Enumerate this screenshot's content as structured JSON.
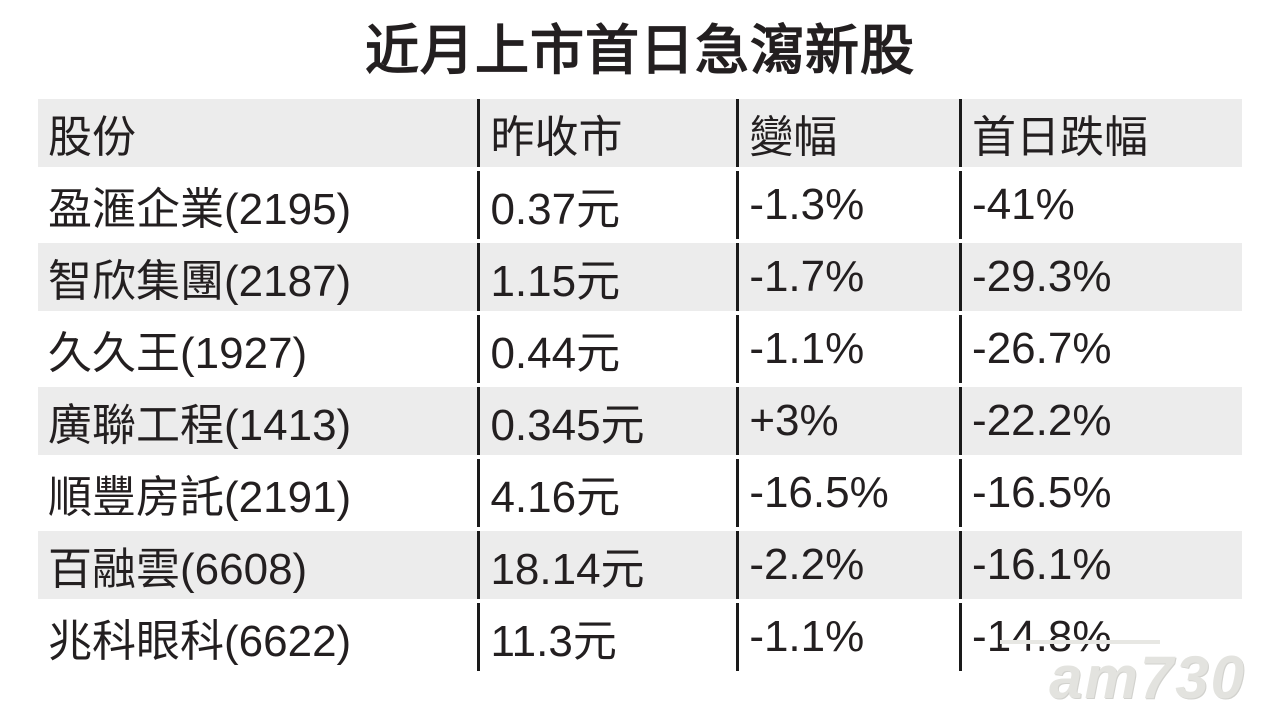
{
  "title": "近月上市首日急瀉新股",
  "watermark": "am730",
  "colors": {
    "text": "#231f20",
    "row_alt_background": "#ececec",
    "divider_line": "#1a1a1a",
    "watermark_gray": "#e3e3df"
  },
  "table": {
    "headers": [
      "股份",
      "昨收市",
      "變幅",
      "首日跌幅"
    ],
    "rows": [
      [
        "盈滙企業(2195)",
        "0.37元",
        "-1.3%",
        "-41%"
      ],
      [
        "智欣集團(2187)",
        "1.15元",
        "-1.7%",
        "-29.3%"
      ],
      [
        "久久王(1927)",
        "0.44元",
        "-1.1%",
        "-26.7%"
      ],
      [
        "廣聯工程(1413)",
        "0.345元",
        "+3%",
        "-22.2%"
      ],
      [
        "順豐房託(2191)",
        "4.16元",
        "-16.5%",
        "-16.5%"
      ],
      [
        "百融雲(6608)",
        "18.14元",
        "-2.2%",
        "-16.1%"
      ],
      [
        "兆科眼科(6622)",
        "11.3元",
        "-1.1%",
        "-14.8%"
      ]
    ]
  },
  "chart_data": {
    "type": "table",
    "title": "近月上市首日急瀉新股",
    "columns": [
      "股份",
      "昨收市",
      "變幅",
      "首日跌幅"
    ],
    "records": [
      {
        "股份": "盈滙企業(2195)",
        "昨收市": "0.37元",
        "變幅": "-1.3%",
        "首日跌幅": "-41%"
      },
      {
        "股份": "智欣集團(2187)",
        "昨收市": "1.15元",
        "變幅": "-1.7%",
        "首日跌幅": "-29.3%"
      },
      {
        "股份": "久久王(1927)",
        "昨收市": "0.44元",
        "變幅": "-1.1%",
        "首日跌幅": "-26.7%"
      },
      {
        "股份": "廣聯工程(1413)",
        "昨收市": "0.345元",
        "變幅": "+3%",
        "首日跌幅": "-22.2%"
      },
      {
        "股份": "順豐房託(2191)",
        "昨收市": "4.16元",
        "變幅": "-16.5%",
        "首日跌幅": "-16.5%"
      },
      {
        "股份": "百融雲(6608)",
        "昨收市": "18.14元",
        "變幅": "-2.2%",
        "首日跌幅": "-16.1%"
      },
      {
        "股份": "兆科眼科(6622)",
        "昨收市": "11.3元",
        "變幅": "-1.1%",
        "首日跌幅": "-14.8%"
      }
    ]
  }
}
